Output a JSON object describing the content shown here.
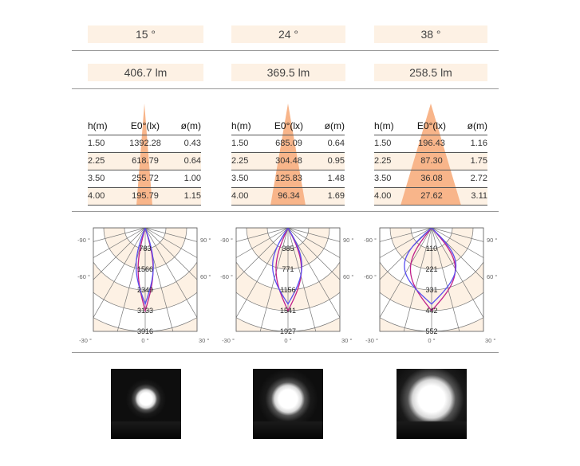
{
  "beams": [
    {
      "angle": "15 °",
      "lumen": "406.7 lm",
      "header": [
        "h(m)",
        "E0°(lx)",
        "ø(m)"
      ],
      "rows": [
        [
          "1.50",
          "1392.28",
          "0.43"
        ],
        [
          "2.25",
          "618.79",
          "0.64"
        ],
        [
          "3.50",
          "255.72",
          "1.00"
        ],
        [
          "4.00",
          "195.79",
          "1.15"
        ]
      ],
      "polar_labels": [
        "783",
        "1566",
        "2349",
        "3133",
        "3916"
      ],
      "spot_fraction": 0.4
    },
    {
      "angle": "24 °",
      "lumen": "369.5 lm",
      "header": [
        "h(m)",
        "E0°(lx)",
        "ø(m)"
      ],
      "rows": [
        [
          "1.50",
          "685.09",
          "0.64"
        ],
        [
          "2.25",
          "304.48",
          "0.95"
        ],
        [
          "3.50",
          "125.83",
          "1.48"
        ],
        [
          "4.00",
          "96.34",
          "1.69"
        ]
      ],
      "polar_labels": [
        "385",
        "771",
        "1156",
        "1541",
        "1927"
      ],
      "spot_fraction": 0.62
    },
    {
      "angle": "38 °",
      "lumen": "258.5 lm",
      "header": [
        "h(m)",
        "E0°(lx)",
        "ø(m)"
      ],
      "rows": [
        [
          "1.50",
          "196.43",
          "1.16"
        ],
        [
          "2.25",
          "87.30",
          "1.75"
        ],
        [
          "3.50",
          "36.08",
          "2.72"
        ],
        [
          "4.00",
          "27.62",
          "3.11"
        ]
      ],
      "polar_labels": [
        "110",
        "221",
        "331",
        "442",
        "552"
      ],
      "spot_fraction": 0.86
    }
  ],
  "polar_axis": {
    "left": [
      "-90 °",
      "-60 °",
      "-30 °"
    ],
    "right": [
      "90 °",
      "60 °",
      "30 °"
    ],
    "bottom": "0 °"
  },
  "colors": {
    "cell_bg": "#fdf1e4",
    "cone": "#f8b58a",
    "curve_a": "#c0208a",
    "curve_b": "#5a4ff0"
  }
}
